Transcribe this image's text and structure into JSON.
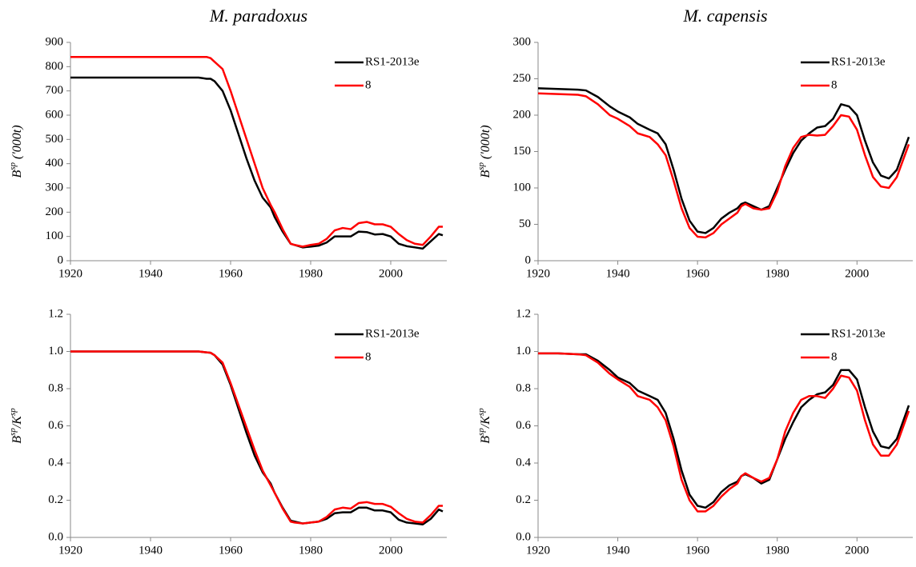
{
  "chart_data": [
    {
      "type": "line",
      "title": "M. paradoxus",
      "ylabel": [
        "B",
        "sp",
        " ('000t)"
      ],
      "legend": "upper right",
      "xlim": [
        1920,
        2014
      ],
      "xticks": [
        1920,
        1940,
        1960,
        1980,
        2000
      ],
      "ylim": [
        0,
        900
      ],
      "yticks": [
        0,
        100,
        200,
        300,
        400,
        500,
        600,
        700,
        800,
        900
      ],
      "x": [
        1920,
        1930,
        1940,
        1950,
        1952,
        1954,
        1955,
        1956,
        1958,
        1960,
        1962,
        1964,
        1966,
        1968,
        1970,
        1971,
        1973,
        1975,
        1976,
        1978,
        1980,
        1982,
        1984,
        1986,
        1988,
        1990,
        1992,
        1994,
        1996,
        1998,
        2000,
        2002,
        2004,
        2006,
        2008,
        2010,
        2012,
        2013
      ],
      "series": [
        {
          "name": "RS1-2013e",
          "color": "#000000",
          "values": [
            755,
            755,
            755,
            755,
            755,
            750,
            750,
            740,
            700,
            620,
            520,
            420,
            330,
            260,
            220,
            180,
            120,
            70,
            65,
            55,
            58,
            62,
            75,
            100,
            100,
            100,
            120,
            118,
            108,
            110,
            100,
            70,
            60,
            55,
            50,
            80,
            110,
            105
          ]
        },
        {
          "name": "8",
          "color": "#ff0000",
          "values": [
            840,
            840,
            840,
            840,
            840,
            840,
            835,
            820,
            790,
            700,
            600,
            500,
            400,
            300,
            230,
            200,
            130,
            70,
            65,
            58,
            65,
            70,
            90,
            125,
            135,
            130,
            155,
            160,
            150,
            150,
            140,
            110,
            85,
            70,
            65,
            100,
            140,
            140
          ]
        }
      ]
    },
    {
      "type": "line",
      "title": "M. capensis",
      "ylabel": [
        "B",
        "sp",
        " ('000t)"
      ],
      "legend": "upper right",
      "xlim": [
        1920,
        2014
      ],
      "xticks": [
        1920,
        1940,
        1960,
        1980,
        2000
      ],
      "ylim": [
        0,
        300
      ],
      "yticks": [
        0,
        50,
        100,
        150,
        200,
        250,
        300
      ],
      "x": [
        1920,
        1925,
        1930,
        1932,
        1935,
        1938,
        1940,
        1943,
        1945,
        1948,
        1950,
        1952,
        1954,
        1956,
        1958,
        1960,
        1962,
        1964,
        1966,
        1968,
        1970,
        1971,
        1972,
        1974,
        1976,
        1978,
        1980,
        1982,
        1984,
        1986,
        1988,
        1990,
        1992,
        1994,
        1996,
        1998,
        2000,
        2002,
        2004,
        2006,
        2008,
        2010,
        2013
      ],
      "series": [
        {
          "name": "RS1-2013e",
          "color": "#000000",
          "values": [
            237,
            236,
            235,
            234,
            225,
            212,
            205,
            197,
            188,
            180,
            175,
            160,
            125,
            85,
            55,
            40,
            38,
            45,
            58,
            66,
            72,
            78,
            80,
            75,
            70,
            75,
            100,
            125,
            148,
            165,
            175,
            183,
            185,
            195,
            215,
            212,
            200,
            165,
            135,
            117,
            113,
            125,
            170
          ]
        },
        {
          "name": "8",
          "color": "#ff0000",
          "values": [
            230,
            229,
            228,
            226,
            215,
            200,
            195,
            185,
            175,
            170,
            160,
            145,
            110,
            72,
            45,
            33,
            32,
            38,
            50,
            58,
            66,
            75,
            78,
            72,
            70,
            72,
            95,
            130,
            155,
            170,
            173,
            172,
            173,
            185,
            200,
            198,
            180,
            145,
            115,
            102,
            100,
            115,
            160
          ]
        }
      ]
    },
    {
      "type": "line",
      "ylabel": [
        "B",
        "sp",
        "/K",
        "sp"
      ],
      "legend": "upper right",
      "xlim": [
        1920,
        2014
      ],
      "xticks": [
        1920,
        1940,
        1960,
        1980,
        2000
      ],
      "ylim": [
        0,
        1.2
      ],
      "yticks": [
        {
          "value": 0,
          "label": "0.0"
        },
        0.2,
        0.4,
        0.6,
        0.8,
        {
          "value": 1,
          "label": "1.0"
        },
        1.2
      ],
      "x": [
        1920,
        1930,
        1940,
        1950,
        1952,
        1954,
        1955,
        1956,
        1958,
        1960,
        1962,
        1964,
        1966,
        1968,
        1970,
        1971,
        1973,
        1975,
        1976,
        1978,
        1980,
        1982,
        1984,
        1986,
        1988,
        1990,
        1992,
        1994,
        1996,
        1998,
        2000,
        2002,
        2004,
        2006,
        2008,
        2010,
        2012,
        2013
      ],
      "series": [
        {
          "name": "RS1-2013e",
          "color": "#000000",
          "values": [
            1,
            1,
            1,
            1,
            1,
            0.995,
            0.993,
            0.98,
            0.93,
            0.82,
            0.69,
            0.56,
            0.44,
            0.35,
            0.29,
            0.24,
            0.16,
            0.09,
            0.085,
            0.075,
            0.08,
            0.085,
            0.1,
            0.13,
            0.135,
            0.135,
            0.16,
            0.16,
            0.145,
            0.145,
            0.135,
            0.095,
            0.08,
            0.075,
            0.07,
            0.1,
            0.15,
            0.14
          ]
        },
        {
          "name": "8",
          "color": "#ff0000",
          "values": [
            1,
            1,
            1,
            1,
            1,
            0.995,
            0.993,
            0.98,
            0.94,
            0.83,
            0.71,
            0.59,
            0.47,
            0.36,
            0.28,
            0.24,
            0.155,
            0.085,
            0.08,
            0.075,
            0.08,
            0.085,
            0.11,
            0.15,
            0.16,
            0.155,
            0.185,
            0.19,
            0.18,
            0.18,
            0.165,
            0.13,
            0.1,
            0.085,
            0.08,
            0.12,
            0.17,
            0.17
          ]
        }
      ]
    },
    {
      "type": "line",
      "ylabel": [
        "B",
        "sp",
        "/K",
        "sp"
      ],
      "legend": "upper right",
      "xlim": [
        1920,
        2014
      ],
      "xticks": [
        1920,
        1940,
        1960,
        1980,
        2000
      ],
      "ylim": [
        0,
        1.2
      ],
      "yticks": [
        {
          "value": 0,
          "label": "0.0"
        },
        0.2,
        0.4,
        0.6,
        0.8,
        {
          "value": 1,
          "label": "1.0"
        },
        1.2
      ],
      "x": [
        1920,
        1925,
        1930,
        1932,
        1935,
        1938,
        1940,
        1943,
        1945,
        1948,
        1950,
        1952,
        1954,
        1956,
        1958,
        1960,
        1962,
        1964,
        1966,
        1968,
        1970,
        1971,
        1972,
        1974,
        1976,
        1978,
        1980,
        1982,
        1984,
        1986,
        1988,
        1990,
        1992,
        1994,
        1996,
        1998,
        2000,
        2002,
        2004,
        2006,
        2008,
        2010,
        2013
      ],
      "series": [
        {
          "name": "RS1-2013e",
          "color": "#000000",
          "values": [
            0.99,
            0.99,
            0.985,
            0.985,
            0.95,
            0.9,
            0.86,
            0.83,
            0.79,
            0.76,
            0.74,
            0.67,
            0.53,
            0.36,
            0.23,
            0.17,
            0.16,
            0.19,
            0.245,
            0.28,
            0.3,
            0.33,
            0.34,
            0.32,
            0.29,
            0.31,
            0.42,
            0.53,
            0.62,
            0.7,
            0.74,
            0.77,
            0.78,
            0.82,
            0.9,
            0.9,
            0.85,
            0.7,
            0.57,
            0.49,
            0.48,
            0.53,
            0.71
          ]
        },
        {
          "name": "8",
          "color": "#ff0000",
          "values": [
            0.99,
            0.99,
            0.985,
            0.98,
            0.94,
            0.88,
            0.85,
            0.81,
            0.76,
            0.74,
            0.7,
            0.63,
            0.49,
            0.31,
            0.2,
            0.14,
            0.14,
            0.17,
            0.22,
            0.26,
            0.29,
            0.33,
            0.345,
            0.32,
            0.3,
            0.32,
            0.42,
            0.57,
            0.67,
            0.74,
            0.76,
            0.76,
            0.75,
            0.8,
            0.87,
            0.86,
            0.79,
            0.63,
            0.5,
            0.44,
            0.44,
            0.5,
            0.68
          ]
        }
      ]
    }
  ]
}
